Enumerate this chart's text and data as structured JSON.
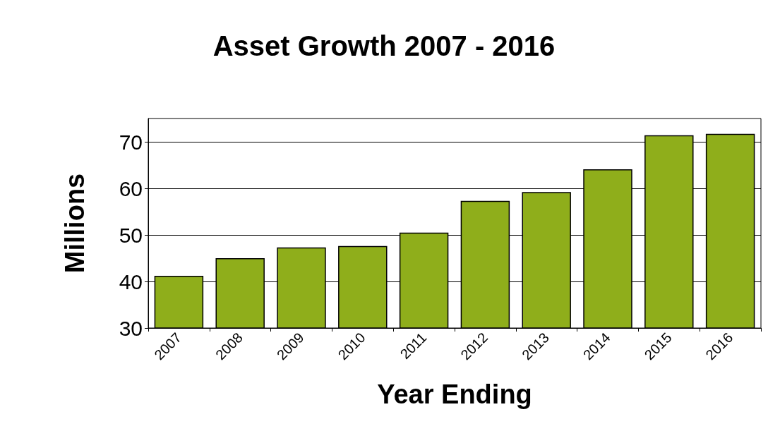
{
  "chart_data": {
    "type": "bar",
    "title": "Asset Growth 2007 - 2016",
    "xlabel": "Year Ending",
    "ylabel": "Millions",
    "categories": [
      "2007",
      "2008",
      "2009",
      "2010",
      "2011",
      "2012",
      "2013",
      "2014",
      "2015",
      "2016"
    ],
    "values": [
      41.2,
      45.0,
      47.3,
      47.6,
      50.5,
      57.3,
      59.2,
      64.1,
      71.4,
      71.7
    ],
    "color": "#8fae1b",
    "ylim": [
      30,
      75
    ],
    "yticks": [
      30,
      40,
      50,
      60,
      70
    ],
    "grid": "y"
  }
}
